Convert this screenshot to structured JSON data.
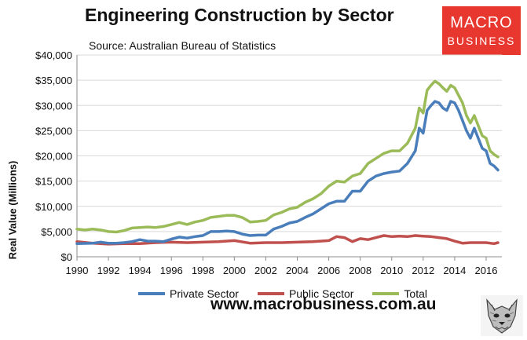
{
  "title": "Engineering Construction by Sector",
  "subtitle": "Source: Australian Bureau of Statistics",
  "logo": {
    "top": "MACRO",
    "bottom": "BUSINESS"
  },
  "footer_url": "www.macrobusiness.com.au",
  "mascot_icon": "wolf-head-icon",
  "colors": {
    "private": "#4a7ebb",
    "public": "#c0504d",
    "total": "#9bbb59",
    "grid": "#d9d9d9",
    "logo": "#e8372e"
  },
  "chart_data": {
    "type": "line",
    "title": "Engineering Construction by Sector",
    "ylabel": "Real Value (Millions)",
    "xlabel": "",
    "xlim": [
      1990,
      2017
    ],
    "ylim": [
      0,
      40000
    ],
    "grid": true,
    "legend_position": "bottom",
    "x_ticks": [
      "1990",
      "1992",
      "1994",
      "1996",
      "1998",
      "2000",
      "2002",
      "2004",
      "2006",
      "2008",
      "2010",
      "2012",
      "2014",
      "2016"
    ],
    "y_ticks": [
      "$0",
      "$5,000",
      "$10,000",
      "$15,000",
      "$20,000",
      "$25,000",
      "$30,000",
      "$35,000",
      "$40,000"
    ],
    "series": [
      {
        "name": "Private Sector",
        "points": [
          [
            1990,
            2600
          ],
          [
            1991,
            2700
          ],
          [
            1991.5,
            2900
          ],
          [
            1992,
            2700
          ],
          [
            1992.5,
            2700
          ],
          [
            1993,
            2800
          ],
          [
            1993.5,
            3000
          ],
          [
            1994,
            3400
          ],
          [
            1994.5,
            3100
          ],
          [
            1995,
            3100
          ],
          [
            1995.5,
            3000
          ],
          [
            1996,
            3500
          ],
          [
            1996.5,
            3900
          ],
          [
            1997,
            3700
          ],
          [
            1997.5,
            4000
          ],
          [
            1998,
            4200
          ],
          [
            1998.5,
            5000
          ],
          [
            1999,
            5000
          ],
          [
            1999.5,
            5100
          ],
          [
            2000,
            5000
          ],
          [
            2000.5,
            4500
          ],
          [
            2001,
            4200
          ],
          [
            2001.5,
            4300
          ],
          [
            2002,
            4300
          ],
          [
            2002.5,
            5500
          ],
          [
            2003,
            6000
          ],
          [
            2003.5,
            6700
          ],
          [
            2004,
            7000
          ],
          [
            2004.5,
            7800
          ],
          [
            2005,
            8500
          ],
          [
            2005.5,
            9500
          ],
          [
            2006,
            10500
          ],
          [
            2006.5,
            11000
          ],
          [
            2007,
            11000
          ],
          [
            2007.5,
            13000
          ],
          [
            2008,
            13000
          ],
          [
            2008.5,
            15000
          ],
          [
            2009,
            16000
          ],
          [
            2009.5,
            16500
          ],
          [
            2010,
            16800
          ],
          [
            2010.5,
            17000
          ],
          [
            2011,
            18500
          ],
          [
            2011.5,
            21000
          ],
          [
            2011.75,
            25500
          ],
          [
            2012,
            24500
          ],
          [
            2012.25,
            29000
          ],
          [
            2012.5,
            30000
          ],
          [
            2012.75,
            30800
          ],
          [
            2013,
            30500
          ],
          [
            2013.25,
            29500
          ],
          [
            2013.5,
            29000
          ],
          [
            2013.75,
            30800
          ],
          [
            2014,
            30500
          ],
          [
            2014.25,
            29000
          ],
          [
            2014.5,
            27000
          ],
          [
            2014.75,
            25000
          ],
          [
            2015,
            23500
          ],
          [
            2015.25,
            25500
          ],
          [
            2015.5,
            23500
          ],
          [
            2015.75,
            21500
          ],
          [
            2016,
            21000
          ],
          [
            2016.25,
            18500
          ],
          [
            2016.5,
            18000
          ],
          [
            2016.75,
            17200
          ]
        ]
      },
      {
        "name": "Public Sector",
        "points": [
          [
            1990,
            3000
          ],
          [
            1991,
            2700
          ],
          [
            1992,
            2500
          ],
          [
            1993,
            2600
          ],
          [
            1994,
            2600
          ],
          [
            1995,
            2800
          ],
          [
            1996,
            2900
          ],
          [
            1997,
            2800
          ],
          [
            1998,
            2900
          ],
          [
            1999,
            3000
          ],
          [
            2000,
            3200
          ],
          [
            2001,
            2700
          ],
          [
            2002,
            2800
          ],
          [
            2003,
            2800
          ],
          [
            2004,
            2900
          ],
          [
            2005,
            3000
          ],
          [
            2006,
            3200
          ],
          [
            2006.5,
            4000
          ],
          [
            2007,
            3800
          ],
          [
            2007.5,
            3000
          ],
          [
            2008,
            3600
          ],
          [
            2008.5,
            3400
          ],
          [
            2009,
            3800
          ],
          [
            2009.5,
            4200
          ],
          [
            2010,
            4000
          ],
          [
            2010.5,
            4100
          ],
          [
            2011,
            4000
          ],
          [
            2011.5,
            4200
          ],
          [
            2012,
            4100
          ],
          [
            2012.5,
            4000
          ],
          [
            2013,
            3800
          ],
          [
            2013.5,
            3600
          ],
          [
            2014,
            3100
          ],
          [
            2014.5,
            2700
          ],
          [
            2015,
            2800
          ],
          [
            2015.5,
            2800
          ],
          [
            2016,
            2800
          ],
          [
            2016.5,
            2600
          ],
          [
            2016.75,
            2800
          ]
        ]
      },
      {
        "name": "Total",
        "points": [
          [
            1990,
            5500
          ],
          [
            1990.5,
            5300
          ],
          [
            1991,
            5500
          ],
          [
            1991.5,
            5300
          ],
          [
            1992,
            5000
          ],
          [
            1992.5,
            4900
          ],
          [
            1993,
            5200
          ],
          [
            1993.5,
            5700
          ],
          [
            1994,
            5800
          ],
          [
            1994.5,
            5900
          ],
          [
            1995,
            5800
          ],
          [
            1995.5,
            6000
          ],
          [
            1996,
            6400
          ],
          [
            1996.5,
            6800
          ],
          [
            1997,
            6400
          ],
          [
            1997.5,
            6900
          ],
          [
            1998,
            7200
          ],
          [
            1998.5,
            7800
          ],
          [
            1999,
            8000
          ],
          [
            1999.5,
            8200
          ],
          [
            2000,
            8200
          ],
          [
            2000.5,
            7800
          ],
          [
            2001,
            6900
          ],
          [
            2001.5,
            7000
          ],
          [
            2002,
            7200
          ],
          [
            2002.5,
            8300
          ],
          [
            2003,
            8800
          ],
          [
            2003.5,
            9500
          ],
          [
            2004,
            9800
          ],
          [
            2004.5,
            10800
          ],
          [
            2005,
            11500
          ],
          [
            2005.5,
            12500
          ],
          [
            2006,
            14000
          ],
          [
            2006.5,
            15000
          ],
          [
            2007,
            14800
          ],
          [
            2007.5,
            16000
          ],
          [
            2008,
            16500
          ],
          [
            2008.5,
            18500
          ],
          [
            2009,
            19500
          ],
          [
            2009.5,
            20500
          ],
          [
            2010,
            21000
          ],
          [
            2010.5,
            21000
          ],
          [
            2011,
            22500
          ],
          [
            2011.5,
            25500
          ],
          [
            2011.75,
            29500
          ],
          [
            2012,
            28500
          ],
          [
            2012.25,
            33000
          ],
          [
            2012.5,
            34000
          ],
          [
            2012.75,
            34800
          ],
          [
            2013,
            34300
          ],
          [
            2013.25,
            33500
          ],
          [
            2013.5,
            32800
          ],
          [
            2013.75,
            34000
          ],
          [
            2014,
            33500
          ],
          [
            2014.25,
            32000
          ],
          [
            2014.5,
            30500
          ],
          [
            2014.75,
            28000
          ],
          [
            2015,
            26500
          ],
          [
            2015.25,
            28000
          ],
          [
            2015.5,
            26000
          ],
          [
            2015.75,
            24000
          ],
          [
            2016,
            23500
          ],
          [
            2016.25,
            21000
          ],
          [
            2016.5,
            20300
          ],
          [
            2016.75,
            19800
          ]
        ]
      }
    ]
  }
}
